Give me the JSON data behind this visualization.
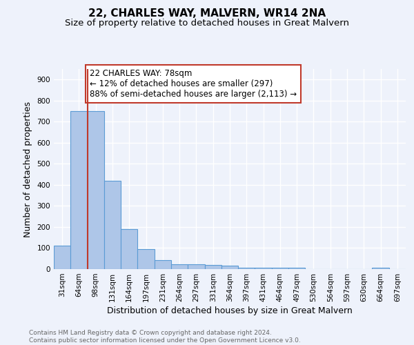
{
  "title": "22, CHARLES WAY, MALVERN, WR14 2NA",
  "subtitle": "Size of property relative to detached houses in Great Malvern",
  "xlabel": "Distribution of detached houses by size in Great Malvern",
  "ylabel": "Number of detached properties",
  "categories": [
    "31sqm",
    "64sqm",
    "98sqm",
    "131sqm",
    "164sqm",
    "197sqm",
    "231sqm",
    "264sqm",
    "297sqm",
    "331sqm",
    "364sqm",
    "397sqm",
    "431sqm",
    "464sqm",
    "497sqm",
    "530sqm",
    "564sqm",
    "597sqm",
    "630sqm",
    "664sqm",
    "697sqm"
  ],
  "values": [
    110,
    750,
    750,
    420,
    190,
    95,
    43,
    22,
    22,
    20,
    18,
    5,
    5,
    5,
    5,
    0,
    0,
    0,
    0,
    8,
    0
  ],
  "bar_color": "#aec6e8",
  "bar_edge_color": "#5b9bd5",
  "property_line_x": 1.5,
  "property_line_color": "#c0392b",
  "annotation_text": "22 CHARLES WAY: 78sqm\n← 12% of detached houses are smaller (297)\n88% of semi-detached houses are larger (2,113) →",
  "annotation_box_color": "#ffffff",
  "annotation_box_edge_color": "#c0392b",
  "ylim": [
    0,
    950
  ],
  "yticks": [
    0,
    100,
    200,
    300,
    400,
    500,
    600,
    700,
    800,
    900
  ],
  "background_color": "#eef2fb",
  "grid_color": "#ffffff",
  "footer_text": "Contains HM Land Registry data © Crown copyright and database right 2024.\nContains public sector information licensed under the Open Government Licence v3.0.",
  "title_fontsize": 11,
  "subtitle_fontsize": 9.5,
  "xlabel_fontsize": 9,
  "ylabel_fontsize": 9,
  "tick_fontsize": 7.5,
  "annotation_fontsize": 8.5,
  "footer_fontsize": 6.5
}
